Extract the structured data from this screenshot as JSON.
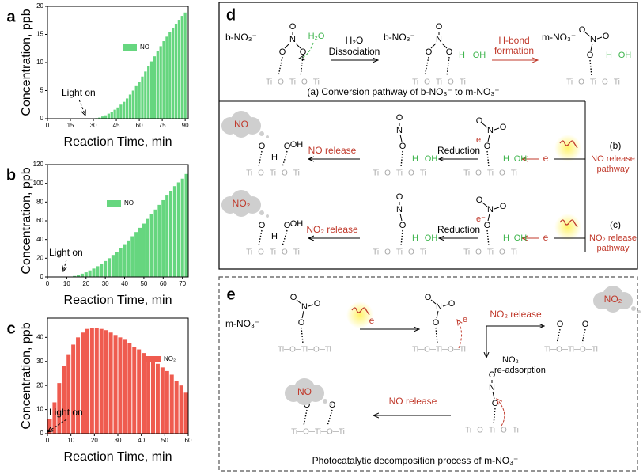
{
  "chart_data": [
    {
      "type": "bar",
      "panel": "a",
      "y_label": "Concentration, ppb",
      "x_label": "Reaction Time, min",
      "annotation": "Light on",
      "x": [
        32,
        34,
        36,
        38,
        40,
        42,
        44,
        46,
        48,
        50,
        52,
        54,
        56,
        58,
        60,
        62,
        64,
        66,
        68,
        70,
        72,
        74,
        76,
        78,
        80,
        82,
        84,
        86,
        88,
        90
      ],
      "series": [
        {
          "name": "NO",
          "color": "#66d67f",
          "values": [
            0.1,
            0.2,
            0.4,
            0.6,
            0.9,
            1.2,
            1.6,
            2.0,
            2.5,
            3.0,
            3.6,
            4.3,
            5.0,
            5.8,
            6.6,
            7.5,
            8.4,
            9.3,
            10.2,
            11.1,
            12.0,
            12.9,
            13.8,
            14.6,
            15.4,
            16.2,
            16.9,
            17.6,
            18.3,
            18.9
          ]
        }
      ],
      "xlim": [
        0,
        92
      ],
      "xticks": [
        0,
        15,
        30,
        45,
        60,
        75,
        90
      ],
      "ylim": [
        0,
        20
      ],
      "yticks": [
        0,
        5,
        10,
        15,
        20
      ]
    },
    {
      "type": "bar",
      "panel": "b",
      "y_label": "Concentration, ppb",
      "x_label": "Reaction Time, min",
      "annotation": "Light on",
      "x": [
        14,
        16,
        18,
        20,
        22,
        24,
        26,
        28,
        30,
        32,
        34,
        36,
        38,
        40,
        42,
        44,
        46,
        48,
        50,
        52,
        54,
        56,
        58,
        60,
        62,
        64,
        66,
        68,
        70,
        72
      ],
      "series": [
        {
          "name": "NO",
          "color": "#66d67f",
          "values": [
            1,
            2,
            3.5,
            5,
            7,
            9,
            11.5,
            14,
            17,
            20,
            23.5,
            27,
            31,
            35,
            39,
            43.5,
            48,
            52.5,
            57,
            62,
            67,
            72,
            77,
            82,
            87,
            92,
            97,
            101,
            105,
            110
          ]
        }
      ],
      "xlim": [
        0,
        73
      ],
      "xticks": [
        0,
        10,
        20,
        30,
        40,
        50,
        60,
        70
      ],
      "ylim": [
        0,
        120
      ],
      "yticks": [
        0,
        20,
        40,
        60,
        80,
        100,
        120
      ]
    },
    {
      "type": "bar",
      "panel": "c",
      "y_label": "Concentration, ppb",
      "x_label": "Reaction Time, min",
      "annotation": "Light on",
      "x": [
        1,
        3,
        5,
        7,
        9,
        11,
        13,
        15,
        17,
        19,
        21,
        23,
        25,
        27,
        29,
        31,
        33,
        35,
        37,
        39,
        41,
        43,
        45,
        47,
        49,
        51,
        53,
        55,
        57,
        59
      ],
      "series": [
        {
          "name": "NO₂",
          "color": "#ef5b4f",
          "values": [
            6,
            13,
            21,
            28,
            33,
            37,
            40,
            42,
            43.5,
            44,
            44,
            43.5,
            43,
            42,
            41,
            40,
            39,
            37.5,
            36,
            35,
            33.5,
            32,
            30.5,
            29,
            27.5,
            26,
            24.5,
            22,
            20,
            17
          ]
        }
      ],
      "xlim": [
        0,
        60
      ],
      "xticks": [
        0,
        10,
        20,
        30,
        40,
        50,
        60
      ],
      "ylim": [
        0,
        48
      ],
      "yticks": [
        0,
        10,
        20,
        30,
        40
      ]
    }
  ],
  "diagram": {
    "atoms": {
      "N": "N",
      "O": "O",
      "H": "H",
      "OH": "OH",
      "surface": "Ti─O─Ti─O─Ti",
      "e_minus": "e⁻"
    },
    "d": {
      "panel": "d",
      "b_label": "b-NO₃⁻",
      "m_label": "m-NO₃⁻",
      "water": "H₂O",
      "step1": "Dissociation",
      "step2": [
        "H-bond",
        "formation"
      ],
      "caption_a": "(a)  Conversion pathway of b-NO₃⁻ to m-NO₃⁻",
      "path_b_tag": "(b)",
      "path_b": [
        "NO release",
        "pathway"
      ],
      "path_c_tag": "(c)",
      "path_c": [
        "NO₂ release",
        "pathway"
      ],
      "gas_no": "NO",
      "gas_no2": "NO₂",
      "release_no": "NO release",
      "release_no2": "NO₂ release",
      "reduction": "Reduction",
      "electron": "e"
    },
    "e": {
      "panel": "e",
      "m_label": "m-NO₃⁻",
      "electron": "e",
      "release_no2": "NO₂ release",
      "readsorb": [
        "NO₂",
        "re-adsorption"
      ],
      "gas_no2": "NO₂",
      "release_no": "NO release",
      "gas_no": "NO",
      "caption": "Photocatalytic decomposition process of m-NO₃⁻"
    }
  }
}
